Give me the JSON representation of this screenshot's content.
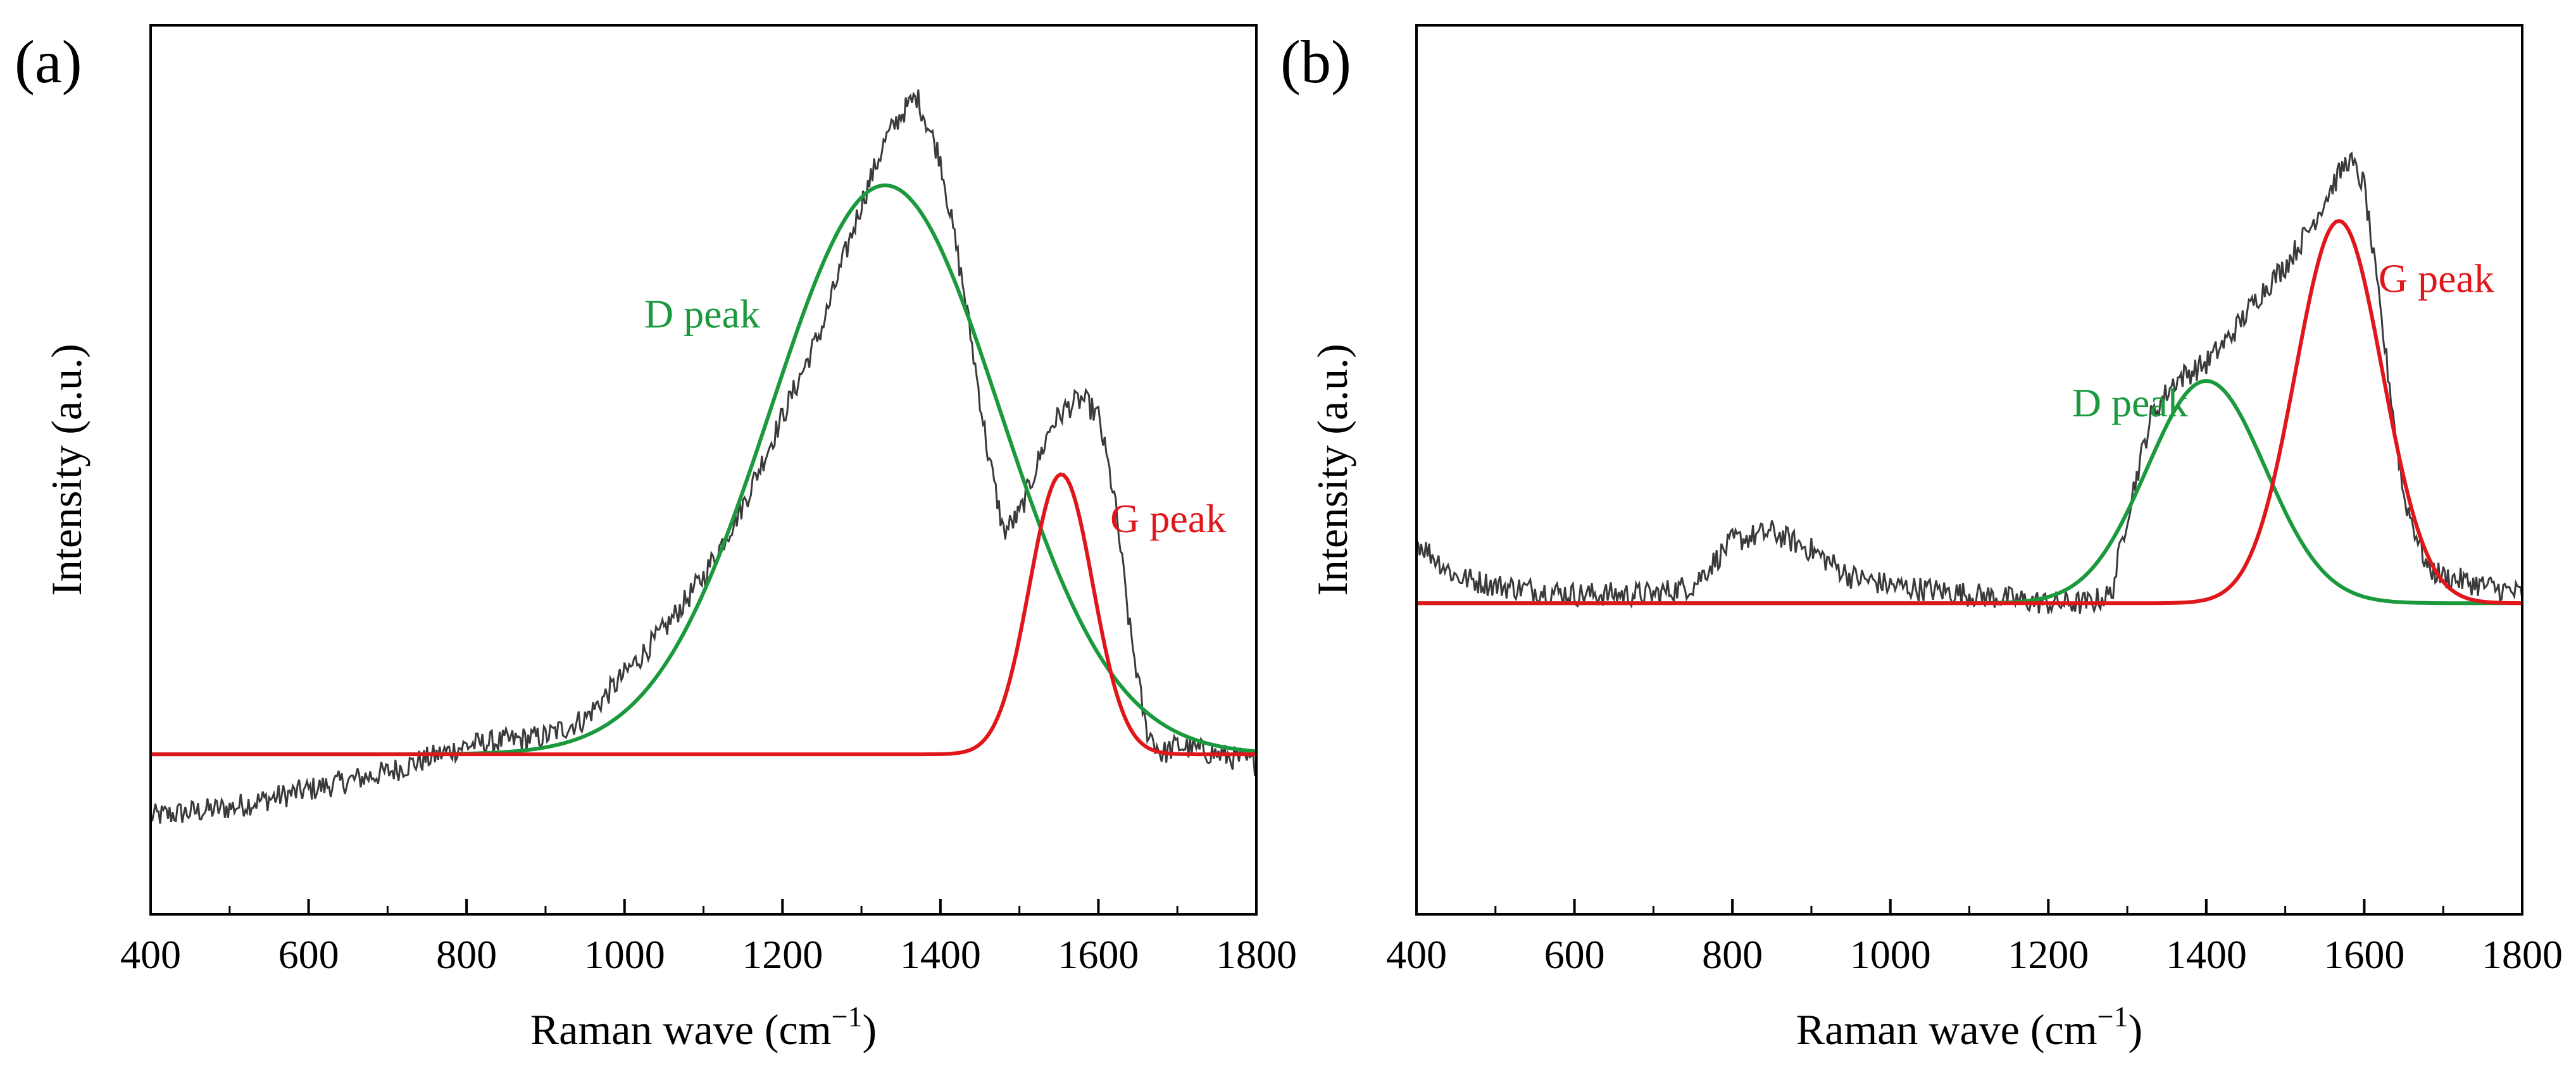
{
  "chart_data": [
    {
      "panel": "(a)",
      "type": "line",
      "xlabel": "Raman wave (cm",
      "xlabel_sup": "−1",
      "xlabel_end": ")",
      "ylabel": "Intensity (a.u.)",
      "xlim": [
        400,
        1800
      ],
      "ylim": [
        0,
        1
      ],
      "xticks": [
        400,
        600,
        800,
        1000,
        1200,
        1400,
        1600,
        1800
      ],
      "baseline": 0.18,
      "series": [
        {
          "name": "measured",
          "color": "#3a3a3a",
          "x": [
            400,
            500,
            600,
            700,
            800,
            900,
            950,
            1000,
            1050,
            1100,
            1150,
            1200,
            1250,
            1300,
            1330,
            1350,
            1370,
            1400,
            1430,
            1460,
            1480,
            1500,
            1520,
            1540,
            1560,
            1580,
            1600,
            1620,
            1640,
            1660,
            1680,
            1700,
            1750,
            1800
          ],
          "y": [
            0.11,
            0.12,
            0.14,
            0.16,
            0.19,
            0.2,
            0.22,
            0.27,
            0.32,
            0.38,
            0.46,
            0.56,
            0.66,
            0.8,
            0.87,
            0.9,
            0.92,
            0.85,
            0.7,
            0.52,
            0.43,
            0.45,
            0.5,
            0.55,
            0.57,
            0.58,
            0.56,
            0.47,
            0.32,
            0.21,
            0.18,
            0.19,
            0.18,
            0.17
          ]
        }
      ],
      "fits": [
        {
          "name": "D peak",
          "color": "#1a9a3c",
          "center": 1330,
          "width": 145,
          "height": 0.64
        },
        {
          "name": "G peak",
          "color": "#e0161b",
          "center": 1553,
          "width": 40,
          "height": 0.315
        }
      ],
      "annotations": [
        {
          "text": "D peak",
          "x": 1025,
          "y": 0.66,
          "color": "#1a9a3c"
        },
        {
          "text": "G peak",
          "x": 1615,
          "y": 0.43,
          "color": "#e0161b"
        }
      ]
    },
    {
      "panel": "(b)",
      "type": "line",
      "xlabel": "Raman wave (cm",
      "xlabel_sup": "−1",
      "xlabel_end": ")",
      "ylabel": "Intensity (a.u.)",
      "xlim": [
        400,
        1800
      ],
      "ylim": [
        0,
        1
      ],
      "xticks": [
        400,
        600,
        800,
        1000,
        1200,
        1400,
        1600,
        1800
      ],
      "baseline": 0.35,
      "series": [
        {
          "name": "measured",
          "color": "#3a3a3a",
          "x": [
            400,
            450,
            500,
            600,
            700,
            750,
            800,
            850,
            900,
            950,
            1000,
            1100,
            1200,
            1250,
            1280,
            1300,
            1330,
            1360,
            1400,
            1430,
            1470,
            1500,
            1530,
            1560,
            1580,
            1600,
            1620,
            1650,
            1680,
            1700,
            1750,
            1800
          ],
          "y": [
            0.42,
            0.38,
            0.37,
            0.36,
            0.36,
            0.37,
            0.42,
            0.43,
            0.41,
            0.38,
            0.37,
            0.36,
            0.35,
            0.35,
            0.36,
            0.45,
            0.56,
            0.6,
            0.62,
            0.65,
            0.7,
            0.73,
            0.77,
            0.82,
            0.85,
            0.82,
            0.68,
            0.47,
            0.39,
            0.38,
            0.37,
            0.36
          ]
        }
      ],
      "fits": [
        {
          "name": "D peak",
          "color": "#1a9a3c",
          "center": 1400,
          "width": 75,
          "height": 0.25
        },
        {
          "name": "G peak",
          "color": "#e0161b",
          "center": 1568,
          "width": 55,
          "height": 0.43
        }
      ],
      "annotations": [
        {
          "text": "D peak",
          "x": 1230,
          "y": 0.56,
          "color": "#1a9a3c"
        },
        {
          "text": "G peak",
          "x": 1618,
          "y": 0.7,
          "color": "#e0161b"
        }
      ]
    }
  ]
}
